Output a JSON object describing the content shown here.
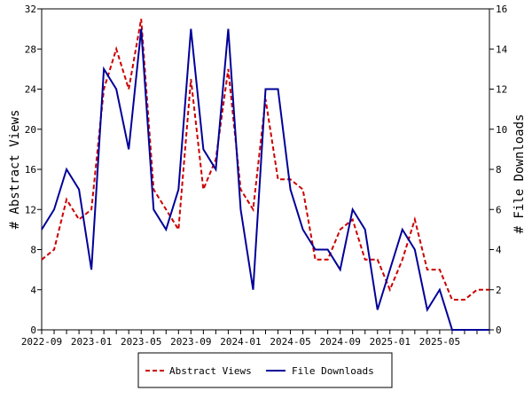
{
  "chart_data": {
    "type": "line",
    "title": "",
    "xlabel": "",
    "ylabel_left": "# Abstract Views",
    "ylabel_right": "# File Downloads",
    "x": [
      "2022-09",
      "2022-10",
      "2022-11",
      "2022-12",
      "2023-01",
      "2023-02",
      "2023-03",
      "2023-04",
      "2023-05",
      "2023-06",
      "2023-07",
      "2023-08",
      "2023-09",
      "2023-10",
      "2023-11",
      "2023-12",
      "2024-01",
      "2024-02",
      "2024-03",
      "2024-04",
      "2024-05",
      "2024-06",
      "2024-07",
      "2024-08",
      "2024-09",
      "2024-10",
      "2024-11",
      "2024-12",
      "2025-01",
      "2025-02",
      "2025-03",
      "2025-04",
      "2025-05",
      "2025-06",
      "2025-07",
      "2025-08",
      "2025-09"
    ],
    "x_tick_labels": [
      "2022-09",
      "2023-01",
      "2023-05",
      "2023-09",
      "2024-01",
      "2024-05",
      "2024-09",
      "2025-01",
      "2025-05"
    ],
    "y_left_ticks": [
      "0",
      "4",
      "8",
      "12",
      "16",
      "20",
      "24",
      "28",
      "32"
    ],
    "y_right_ticks": [
      "0",
      "2",
      "4",
      "6",
      "8",
      "10",
      "12",
      "14",
      "16"
    ],
    "ylim_left": [
      0,
      32
    ],
    "ylim_right": [
      0,
      16
    ],
    "grid": false,
    "legend_position": "bottom",
    "series": [
      {
        "name": "Abstract Views",
        "axis": "left",
        "color": "#cc0000",
        "style": "dashed",
        "values": [
          7,
          8,
          13,
          11,
          12,
          24,
          28,
          24,
          31,
          14,
          12,
          10,
          25,
          14,
          17,
          26,
          14,
          12,
          23,
          15,
          15,
          14,
          7,
          7,
          10,
          11,
          7,
          7,
          4,
          7,
          11,
          6,
          6,
          3,
          3,
          4,
          4
        ]
      },
      {
        "name": "File Downloads",
        "axis": "right",
        "color": "#000099",
        "style": "solid",
        "values": [
          5,
          6,
          8,
          7,
          3,
          13,
          12,
          9,
          15,
          6,
          5,
          7,
          15,
          9,
          8,
          15,
          6,
          2,
          12,
          12,
          7,
          5,
          4,
          4,
          3,
          6,
          5,
          1,
          3,
          5,
          4,
          1,
          2,
          0,
          0,
          0,
          0
        ]
      }
    ]
  }
}
